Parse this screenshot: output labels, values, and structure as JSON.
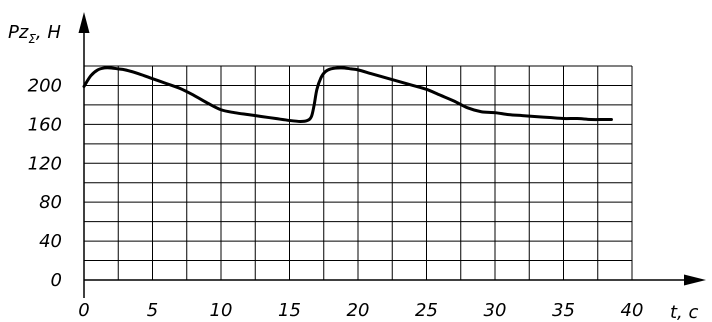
{
  "chart_data": {
    "type": "line",
    "title": "",
    "ylabel_main": "Pz",
    "ylabel_sub": "Σ",
    "ylabel_unit": ", H",
    "xlabel": "t, c",
    "xlim": [
      0,
      40
    ],
    "ylim": [
      0,
      220
    ],
    "x_ticks": [
      0,
      5,
      10,
      15,
      20,
      25,
      30,
      35,
      40
    ],
    "y_ticks": [
      0,
      40,
      80,
      120,
      160,
      200
    ],
    "x_tick_labels": [
      "0",
      "5",
      "10",
      "15",
      "20",
      "25",
      "30",
      "35",
      "40"
    ],
    "y_tick_labels": [
      "0",
      "40",
      "80",
      "120",
      "160",
      "200"
    ],
    "grid": true,
    "series": [
      {
        "x": [
          0,
          0.5,
          1,
          1.5,
          2,
          2.5,
          3,
          4,
          5,
          6,
          7,
          8,
          9,
          10,
          11,
          12,
          13,
          14,
          15,
          15.8,
          16.3,
          16.6,
          16.8,
          17,
          17.3,
          17.6,
          18,
          18.5,
          19,
          19.5,
          20,
          21,
          22,
          23,
          24,
          25,
          26,
          27,
          28,
          29,
          30,
          31,
          32,
          33,
          34,
          35,
          36,
          37,
          38,
          38.5
        ],
        "y": [
          199,
          210,
          216,
          218,
          218,
          217,
          216,
          212,
          207,
          202,
          197,
          190,
          182,
          175,
          172,
          170,
          168,
          166,
          164,
          163,
          164,
          168,
          180,
          196,
          208,
          214,
          217,
          218,
          218,
          217,
          216,
          212,
          208,
          204,
          200,
          196,
          190,
          184,
          177,
          173,
          172,
          170,
          169,
          168,
          167,
          166,
          166,
          165,
          165,
          165
        ]
      }
    ]
  }
}
